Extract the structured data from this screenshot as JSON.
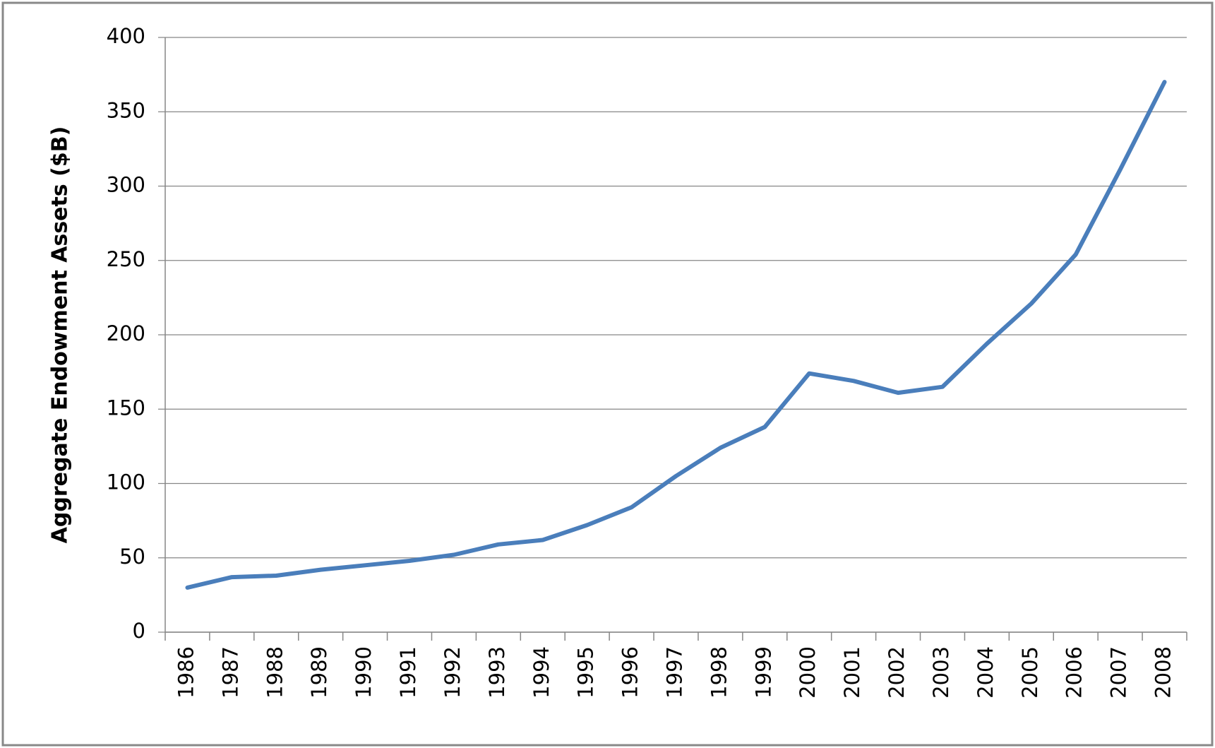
{
  "chart_data": {
    "type": "line",
    "y_label": "Aggregate Endowment Assets ($B)",
    "categories": [
      "1986",
      "1987",
      "1988",
      "1989",
      "1990",
      "1991",
      "1992",
      "1993",
      "1994",
      "1995",
      "1996",
      "1997",
      "1998",
      "1999",
      "2000",
      "2001",
      "2002",
      "2003",
      "2004",
      "2005",
      "2006",
      "2007",
      "2008"
    ],
    "values": [
      30,
      37,
      38,
      42,
      45,
      48,
      52,
      59,
      62,
      72,
      84,
      105,
      124,
      138,
      174,
      169,
      161,
      165,
      194,
      221,
      254,
      311,
      370
    ],
    "color": "#4a7ebb",
    "ylim": [
      0,
      400
    ],
    "yticks": [
      0,
      50,
      100,
      150,
      200,
      250,
      300,
      350,
      400
    ],
    "grid": true
  }
}
